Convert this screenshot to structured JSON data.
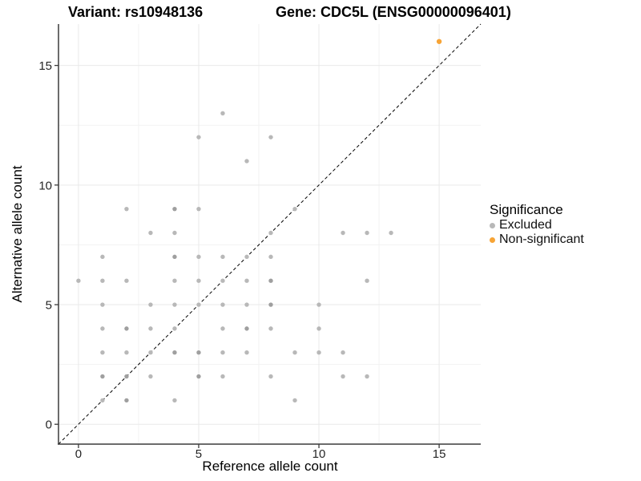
{
  "titles": {
    "variant": "Variant: rs10948136",
    "gene": "Gene: CDC5L (ENSG00000096401)"
  },
  "axes": {
    "x": {
      "label": "Reference allele count",
      "ticks": [
        0,
        5,
        10,
        15
      ],
      "minor_ticks": [
        2.5,
        7.5,
        12.5
      ]
    },
    "y": {
      "label": "Alternative allele count",
      "ticks": [
        0,
        5,
        10,
        15
      ],
      "minor_ticks": [
        2.5,
        7.5,
        12.5
      ]
    }
  },
  "legend": {
    "title": "Significance",
    "items": [
      {
        "label": "Excluded",
        "color": "#B8B8B8"
      },
      {
        "label": "Non-significant",
        "color": "#F7A436"
      }
    ]
  },
  "chart_data": {
    "type": "scatter",
    "title": "Variant: rs10948136 | Gene: CDC5L (ENSG00000096401)",
    "xlabel": "Reference allele count",
    "ylabel": "Alternative allele count",
    "xlim": [
      -0.83,
      16.73
    ],
    "ylim": [
      -0.83,
      16.73
    ],
    "grid": "on",
    "legend_position": "right",
    "colors": {
      "grid_major": "#E9E9E9",
      "grid_minor": "#F2F2F2",
      "axis": "#3C3C3C",
      "identity_line": "#000000"
    },
    "identity_line": {
      "style": "dashed",
      "from": [
        -0.83,
        -0.83
      ],
      "to": [
        16.73,
        16.73
      ]
    },
    "series": [
      {
        "name": "Excluded",
        "color": "#B8B8B8",
        "color_overlap": "#9F9F9F",
        "radius": 2.7,
        "points": [
          [
            0,
            6,
            1
          ],
          [
            1,
            1,
            1
          ],
          [
            1,
            2,
            2
          ],
          [
            1,
            3,
            1
          ],
          [
            1,
            4,
            1
          ],
          [
            1,
            5,
            1
          ],
          [
            1,
            6,
            1
          ],
          [
            1,
            7,
            1
          ],
          [
            2,
            1,
            2
          ],
          [
            2,
            2,
            2
          ],
          [
            2,
            3,
            1
          ],
          [
            2,
            4,
            2
          ],
          [
            2,
            6,
            1
          ],
          [
            2,
            9,
            1
          ],
          [
            3,
            2,
            1
          ],
          [
            3,
            3,
            1
          ],
          [
            3,
            4,
            1
          ],
          [
            3,
            5,
            1
          ],
          [
            3,
            8,
            1
          ],
          [
            4,
            1,
            1
          ],
          [
            4,
            3,
            2
          ],
          [
            4,
            4,
            1
          ],
          [
            4,
            5,
            1
          ],
          [
            4,
            6,
            1
          ],
          [
            4,
            7,
            2
          ],
          [
            4,
            8,
            1
          ],
          [
            4,
            9,
            2
          ],
          [
            5,
            2,
            2
          ],
          [
            5,
            3,
            2
          ],
          [
            5,
            5,
            1
          ],
          [
            5,
            6,
            1
          ],
          [
            5,
            7,
            1
          ],
          [
            5,
            9,
            1
          ],
          [
            5,
            12,
            1
          ],
          [
            6,
            2,
            1
          ],
          [
            6,
            3,
            1
          ],
          [
            6,
            4,
            1
          ],
          [
            6,
            5,
            1
          ],
          [
            6,
            6,
            1
          ],
          [
            6,
            7,
            1
          ],
          [
            6,
            13,
            1
          ],
          [
            7,
            3,
            1
          ],
          [
            7,
            4,
            2
          ],
          [
            7,
            5,
            1
          ],
          [
            7,
            6,
            1
          ],
          [
            7,
            7,
            1
          ],
          [
            7,
            11,
            1
          ],
          [
            8,
            2,
            1
          ],
          [
            8,
            4,
            1
          ],
          [
            8,
            5,
            2
          ],
          [
            8,
            6,
            2
          ],
          [
            8,
            7,
            1
          ],
          [
            8,
            8,
            1
          ],
          [
            8,
            12,
            1
          ],
          [
            9,
            1,
            1
          ],
          [
            9,
            3,
            1
          ],
          [
            9,
            9,
            1
          ],
          [
            10,
            3,
            1
          ],
          [
            10,
            4,
            1
          ],
          [
            10,
            5,
            1
          ],
          [
            11,
            2,
            1
          ],
          [
            11,
            3,
            1
          ],
          [
            11,
            8,
            1
          ],
          [
            12,
            2,
            1
          ],
          [
            12,
            6,
            1
          ],
          [
            12,
            8,
            1
          ],
          [
            13,
            8,
            1
          ]
        ]
      },
      {
        "name": "Non-significant",
        "color": "#F7A436",
        "radius": 3.2,
        "points": [
          [
            15,
            16,
            1
          ]
        ]
      }
    ]
  }
}
